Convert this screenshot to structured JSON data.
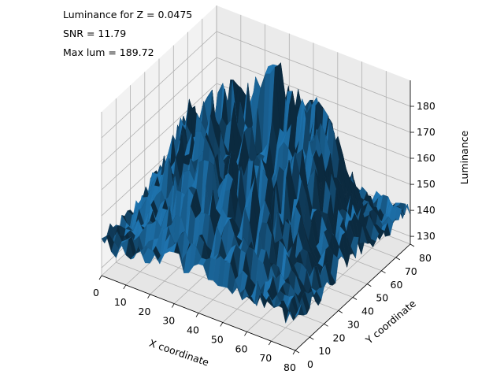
{
  "annotations": {
    "line1": "Luminance for Z = 0.0475",
    "line2": "SNR = 11.79",
    "line3": "Max lum = 189.72"
  },
  "chart_data": {
    "type": "surface3d",
    "title": "",
    "xlabel": "X coordinate",
    "ylabel": "Y coordinate",
    "zlabel": "Luminance",
    "xlim": [
      0,
      80
    ],
    "ylim": [
      0,
      80
    ],
    "zlim": [
      127,
      190
    ],
    "x_ticks": [
      "0",
      "10",
      "20",
      "30",
      "40",
      "50",
      "60",
      "70",
      "80"
    ],
    "y_ticks": [
      "0",
      "10",
      "20",
      "30",
      "40",
      "50",
      "60",
      "70",
      "80"
    ],
    "z_ticks": [
      "130",
      "140",
      "150",
      "160",
      "170",
      "180"
    ],
    "grid": true,
    "surface_color": "#1f77b4",
    "surface_profile": {
      "description_note": "noisy ring of elevated luminance around a lower center",
      "base_level": 146,
      "ring_peak": 172,
      "center_level": 138,
      "max": 189.72,
      "min": 127
    }
  }
}
